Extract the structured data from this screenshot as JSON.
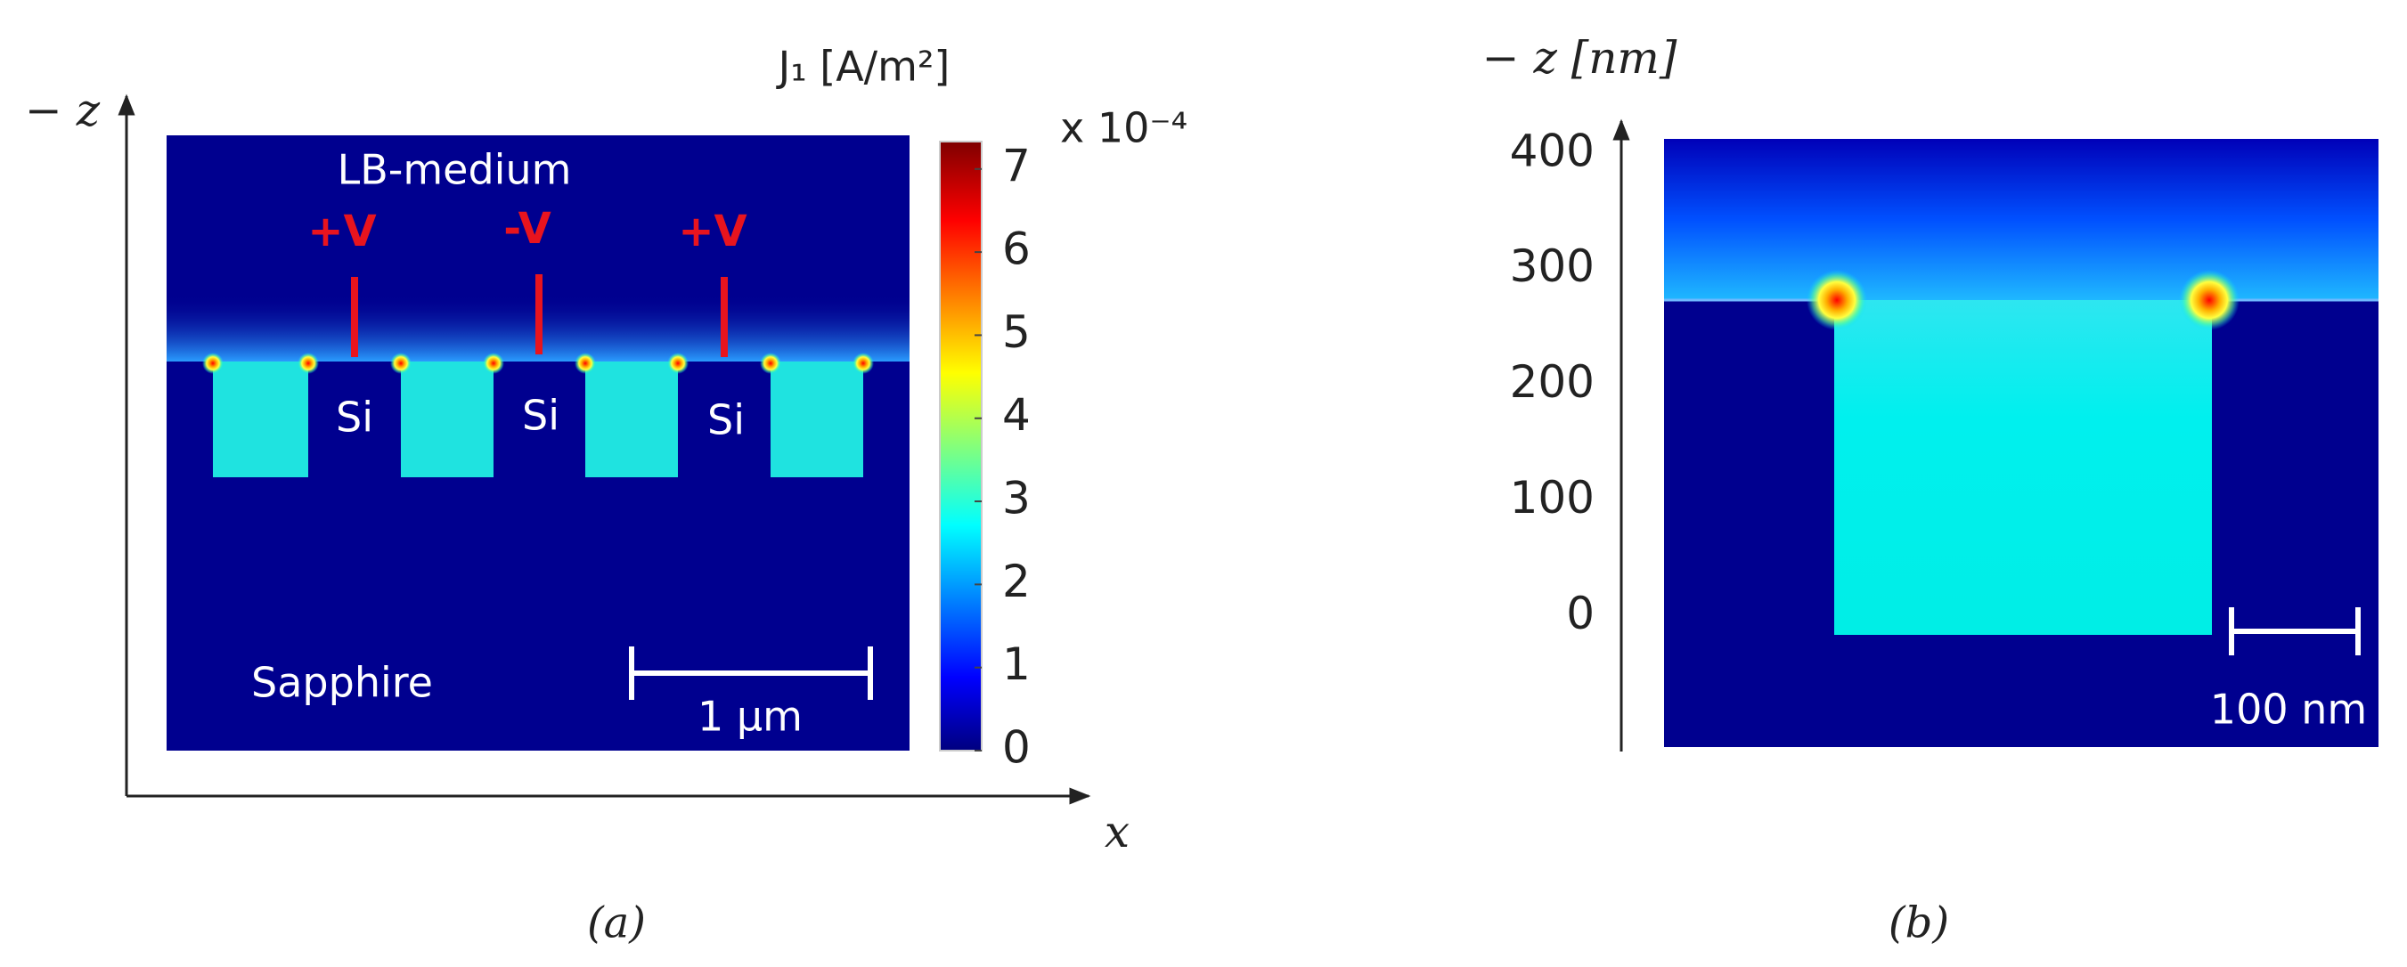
{
  "panel_a": {
    "z_axis_label": "− z",
    "x_axis_label": "x",
    "medium_label": "LB-medium",
    "electrodes": [
      "+V",
      "-V",
      "+V"
    ],
    "electrode_material": [
      "Si",
      "Si",
      "Si"
    ],
    "substrate_label": "Sapphire",
    "scale_bar": "1 µm",
    "caption": "(a)"
  },
  "colorbar": {
    "title": "J₁ [A/m²]",
    "multiplier": "x 10⁻⁴",
    "lim": [
      0,
      7.33
    ],
    "ticks": [
      0,
      1,
      2,
      3,
      4,
      5,
      6,
      7
    ]
  },
  "panel_b": {
    "y_axis_label": "− z [nm]",
    "ylim": [
      -113,
      413
    ],
    "yticks": [
      0,
      100,
      200,
      300,
      400
    ],
    "scale_bar": "100 nm",
    "caption": "(b)"
  }
}
